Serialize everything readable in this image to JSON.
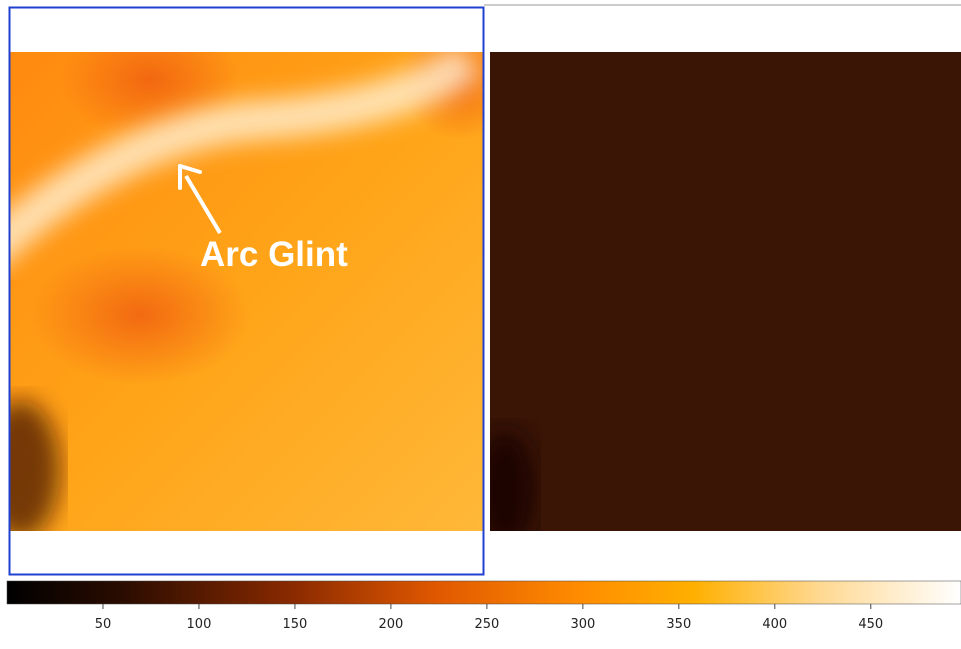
{
  "annotation": {
    "text": "Arc Glint"
  },
  "colorbar": {
    "range": [
      0,
      497
    ],
    "ticks": [
      50,
      100,
      150,
      200,
      250,
      300,
      350,
      400,
      450
    ]
  }
}
